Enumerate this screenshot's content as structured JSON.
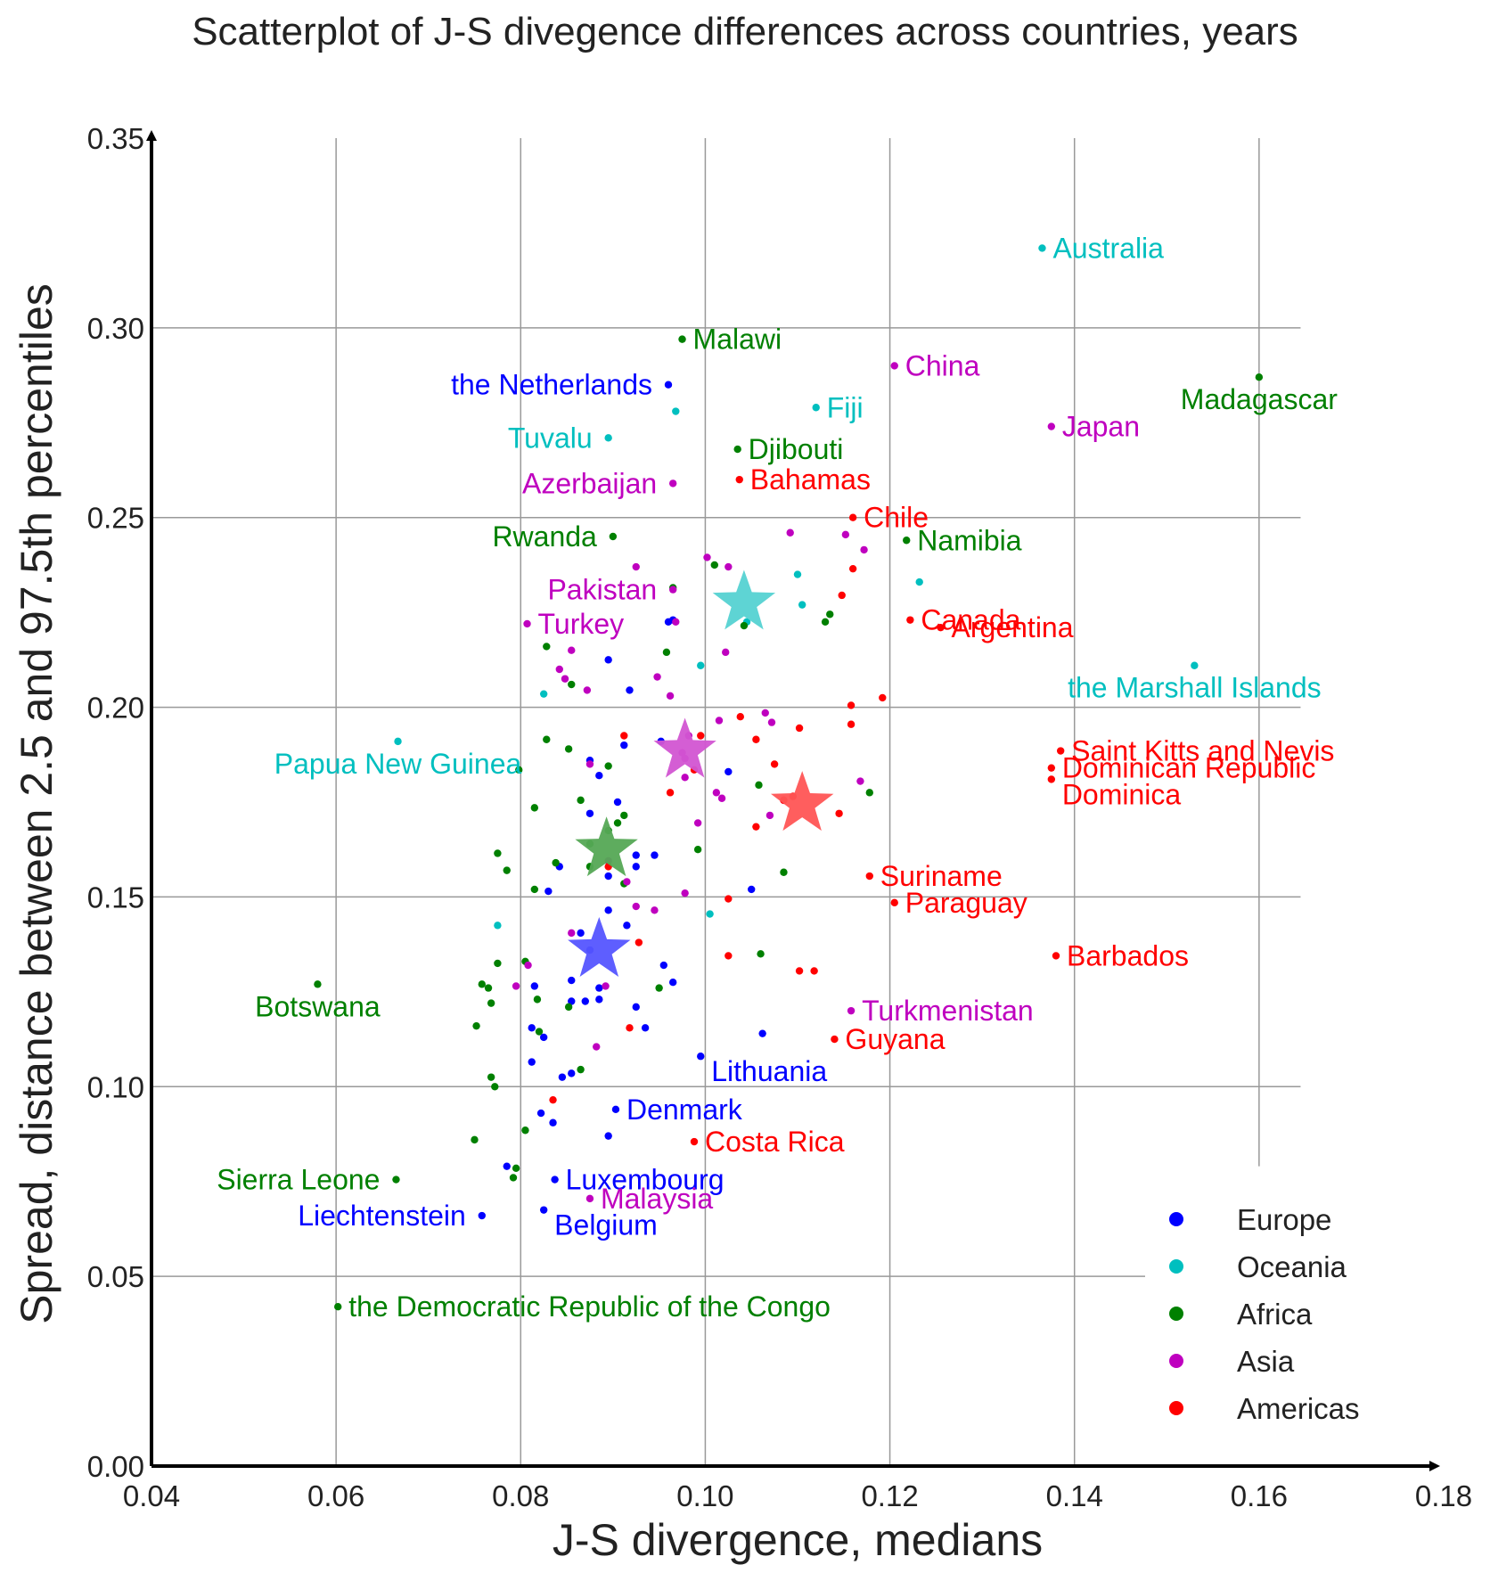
{
  "chart_data": {
    "type": "scatter",
    "title": "Scatterplot of J-S divegence differences across countries, years",
    "xlabel": "J-S divergence, medians",
    "ylabel": "Spread, distance between 2.5  and 97.5th percentiles",
    "xlim": [
      0.04,
      0.18
    ],
    "ylim": [
      0.0,
      0.35
    ],
    "xticks": [
      "0.04",
      "0.06",
      "0.08",
      "0.10",
      "0.12",
      "0.14",
      "0.16",
      "0.18"
    ],
    "yticks": [
      "0.00",
      "0.05",
      "0.10",
      "0.15",
      "0.20",
      "0.25",
      "0.30",
      "0.35"
    ],
    "grid": true,
    "legend_position": "bottom-right",
    "colors": {
      "Europe": "#0000ff",
      "Oceania": "#00bfbf",
      "Africa": "#008000",
      "Asia": "#bf00bf",
      "Americas": "#ff0000"
    },
    "star_colors": {
      "Europe": "#5555ff",
      "Oceania": "#55d2d2",
      "Africa": "#55a855",
      "Asia": "#d255d2",
      "Americas": "#ff5555"
    },
    "legend": [
      "Europe",
      "Oceania",
      "Africa",
      "Asia",
      "Americas"
    ],
    "labeled_points": [
      {
        "name": "Australia",
        "group": "Oceania",
        "x": 0.1365,
        "y": 0.321,
        "anchor": "right"
      },
      {
        "name": "Malawi",
        "group": "Africa",
        "x": 0.0975,
        "y": 0.297,
        "anchor": "right"
      },
      {
        "name": "the Netherlands",
        "group": "Europe",
        "x": 0.096,
        "y": 0.285,
        "anchor": "left"
      },
      {
        "name": "China",
        "group": "Asia",
        "x": 0.1205,
        "y": 0.29,
        "anchor": "right"
      },
      {
        "name": "Madagascar",
        "group": "Africa",
        "x": 0.16,
        "y": 0.287,
        "anchor": "below"
      },
      {
        "name": "Fiji",
        "group": "Oceania",
        "x": 0.112,
        "y": 0.279,
        "anchor": "right"
      },
      {
        "name": "Tuvalu",
        "group": "Oceania",
        "x": 0.0895,
        "y": 0.271,
        "anchor": "left"
      },
      {
        "name": "Japan",
        "group": "Asia",
        "x": 0.1375,
        "y": 0.274,
        "anchor": "right"
      },
      {
        "name": "Djibouti",
        "group": "Africa",
        "x": 0.1035,
        "y": 0.268,
        "anchor": "right"
      },
      {
        "name": "Azerbaijan",
        "group": "Asia",
        "x": 0.0965,
        "y": 0.259,
        "anchor": "left"
      },
      {
        "name": "Bahamas",
        "group": "Americas",
        "x": 0.1037,
        "y": 0.26,
        "anchor": "right"
      },
      {
        "name": "Chile",
        "group": "Americas",
        "x": 0.116,
        "y": 0.25,
        "anchor": "right"
      },
      {
        "name": "Rwanda",
        "group": "Africa",
        "x": 0.09,
        "y": 0.245,
        "anchor": "left"
      },
      {
        "name": "Namibia",
        "group": "Africa",
        "x": 0.1218,
        "y": 0.244,
        "anchor": "right"
      },
      {
        "name": "Pakistan",
        "group": "Asia",
        "x": 0.0965,
        "y": 0.231,
        "anchor": "left"
      },
      {
        "name": "Canada",
        "group": "Americas",
        "x": 0.1222,
        "y": 0.223,
        "anchor": "right"
      },
      {
        "name": "Turkey",
        "group": "Asia",
        "x": 0.0807,
        "y": 0.222,
        "anchor": "right"
      },
      {
        "name": "Argentina",
        "group": "Americas",
        "x": 0.1255,
        "y": 0.221,
        "anchor": "right"
      },
      {
        "name": "the Marshall Islands",
        "group": "Oceania",
        "x": 0.153,
        "y": 0.211,
        "anchor": "below"
      },
      {
        "name": "Papua New Guinea",
        "group": "Oceania",
        "x": 0.0667,
        "y": 0.191,
        "anchor": "below"
      },
      {
        "name": "Saint Kitts and Nevis",
        "group": "Americas",
        "x": 0.1385,
        "y": 0.1885,
        "anchor": "right"
      },
      {
        "name": "Dominican Republic",
        "group": "Americas",
        "x": 0.1375,
        "y": 0.184,
        "anchor": "right"
      },
      {
        "name": "Dominica",
        "group": "Americas",
        "x": 0.1375,
        "y": 0.181,
        "anchor": "right-below"
      },
      {
        "name": "Suriname",
        "group": "Americas",
        "x": 0.1178,
        "y": 0.1555,
        "anchor": "right"
      },
      {
        "name": "Paraguay",
        "group": "Americas",
        "x": 0.1205,
        "y": 0.1485,
        "anchor": "right"
      },
      {
        "name": "Barbados",
        "group": "Americas",
        "x": 0.138,
        "y": 0.1345,
        "anchor": "right"
      },
      {
        "name": "Botswana",
        "group": "Africa",
        "x": 0.058,
        "y": 0.127,
        "anchor": "below"
      },
      {
        "name": "Turkmenistan",
        "group": "Asia",
        "x": 0.1158,
        "y": 0.12,
        "anchor": "right"
      },
      {
        "name": "Guyana",
        "group": "Americas",
        "x": 0.114,
        "y": 0.1125,
        "anchor": "right"
      },
      {
        "name": "Lithuania",
        "group": "Europe",
        "x": 0.0995,
        "y": 0.108,
        "anchor": "right-below"
      },
      {
        "name": "Denmark",
        "group": "Europe",
        "x": 0.0903,
        "y": 0.094,
        "anchor": "right"
      },
      {
        "name": "Costa Rica",
        "group": "Americas",
        "x": 0.0988,
        "y": 0.0855,
        "anchor": "right"
      },
      {
        "name": "Sierra Leone",
        "group": "Africa",
        "x": 0.0665,
        "y": 0.0755,
        "anchor": "left"
      },
      {
        "name": "Luxembourg",
        "group": "Europe",
        "x": 0.0837,
        "y": 0.0755,
        "anchor": "right"
      },
      {
        "name": "Malaysia",
        "group": "Asia",
        "x": 0.0875,
        "y": 0.0705,
        "anchor": "right"
      },
      {
        "name": "Liechtenstein",
        "group": "Europe",
        "x": 0.0758,
        "y": 0.066,
        "anchor": "left"
      },
      {
        "name": "Belgium",
        "group": "Europe",
        "x": 0.0825,
        "y": 0.0675,
        "anchor": "right-below"
      },
      {
        "name": "the Democratic Republic of the Congo",
        "group": "Africa",
        "x": 0.0602,
        "y": 0.042,
        "anchor": "right"
      }
    ],
    "group_means": [
      {
        "group": "Oceania",
        "x": 0.1042,
        "y": 0.2275
      },
      {
        "group": "Asia",
        "x": 0.0978,
        "y": 0.1885
      },
      {
        "group": "Americas",
        "x": 0.1105,
        "y": 0.1745
      },
      {
        "group": "Africa",
        "x": 0.0893,
        "y": 0.1625
      },
      {
        "group": "Europe",
        "x": 0.0885,
        "y": 0.136
      }
    ],
    "points": {
      "Europe": [
        [
          0.0895,
          0.2125
        ],
        [
          0.0918,
          0.2045
        ],
        [
          0.0952,
          0.191
        ],
        [
          0.096,
          0.2225
        ],
        [
          0.0875,
          0.186
        ],
        [
          0.0885,
          0.182
        ],
        [
          0.0912,
          0.19
        ],
        [
          0.0875,
          0.172
        ],
        [
          0.0925,
          0.161
        ],
        [
          0.0925,
          0.158
        ],
        [
          0.0895,
          0.1555
        ],
        [
          0.0945,
          0.161
        ],
        [
          0.0842,
          0.158
        ],
        [
          0.083,
          0.1515
        ],
        [
          0.0895,
          0.1465
        ],
        [
          0.0915,
          0.1425
        ],
        [
          0.0865,
          0.1405
        ],
        [
          0.0875,
          0.136
        ],
        [
          0.0955,
          0.132
        ],
        [
          0.0965,
          0.1275
        ],
        [
          0.0855,
          0.128
        ],
        [
          0.0885,
          0.126
        ],
        [
          0.0815,
          0.1265
        ],
        [
          0.087,
          0.1225
        ],
        [
          0.0885,
          0.123
        ],
        [
          0.0855,
          0.1225
        ],
        [
          0.0925,
          0.121
        ],
        [
          0.0935,
          0.1155
        ],
        [
          0.0812,
          0.1155
        ],
        [
          0.0825,
          0.113
        ],
        [
          0.1062,
          0.114
        ],
        [
          0.0812,
          0.1065
        ],
        [
          0.0845,
          0.1025
        ],
        [
          0.0855,
          0.1035
        ],
        [
          0.0822,
          0.093
        ],
        [
          0.0835,
          0.0905
        ],
        [
          0.0895,
          0.087
        ],
        [
          0.0785,
          0.079
        ],
        [
          0.105,
          0.152
        ],
        [
          0.1025,
          0.183
        ],
        [
          0.0905,
          0.175
        ],
        [
          0.0965,
          0.223
        ]
      ],
      "Oceania": [
        [
          0.0968,
          0.278
        ],
        [
          0.11,
          0.235
        ],
        [
          0.1232,
          0.233
        ],
        [
          0.1105,
          0.227
        ],
        [
          0.1045,
          0.2225
        ],
        [
          0.0995,
          0.211
        ],
        [
          0.0825,
          0.2035
        ],
        [
          0.1005,
          0.1455
        ],
        [
          0.0775,
          0.1425
        ]
      ],
      "Africa": [
        [
          0.101,
          0.2375
        ],
        [
          0.0965,
          0.2315
        ],
        [
          0.1135,
          0.2245
        ],
        [
          0.113,
          0.2225
        ],
        [
          0.1042,
          0.2215
        ],
        [
          0.0958,
          0.2145
        ],
        [
          0.0828,
          0.216
        ],
        [
          0.0855,
          0.206
        ],
        [
          0.0828,
          0.1915
        ],
        [
          0.0852,
          0.189
        ],
        [
          0.0895,
          0.1845
        ],
        [
          0.0798,
          0.1835
        ],
        [
          0.1058,
          0.1795
        ],
        [
          0.1178,
          0.1775
        ],
        [
          0.0865,
          0.1755
        ],
        [
          0.0815,
          0.1735
        ],
        [
          0.0912,
          0.1715
        ],
        [
          0.0905,
          0.1695
        ],
        [
          0.0775,
          0.1615
        ],
        [
          0.0992,
          0.1625
        ],
        [
          0.0785,
          0.157
        ],
        [
          0.0838,
          0.159
        ],
        [
          0.0875,
          0.158
        ],
        [
          0.1085,
          0.1565
        ],
        [
          0.0912,
          0.1535
        ],
        [
          0.0815,
          0.152
        ],
        [
          0.106,
          0.135
        ],
        [
          0.0775,
          0.1325
        ],
        [
          0.0805,
          0.133
        ],
        [
          0.0758,
          0.127
        ],
        [
          0.0765,
          0.126
        ],
        [
          0.095,
          0.126
        ],
        [
          0.0818,
          0.123
        ],
        [
          0.0768,
          0.122
        ],
        [
          0.0852,
          0.121
        ],
        [
          0.0752,
          0.116
        ],
        [
          0.082,
          0.1145
        ],
        [
          0.0865,
          0.1045
        ],
        [
          0.0768,
          0.1025
        ],
        [
          0.0772,
          0.1
        ],
        [
          0.0805,
          0.0885
        ],
        [
          0.075,
          0.086
        ],
        [
          0.0795,
          0.0785
        ],
        [
          0.0792,
          0.076
        ],
        [
          0.0875,
          0.164
        ],
        [
          0.0895,
          0.1675
        ]
      ],
      "Asia": [
        [
          0.1002,
          0.2395
        ],
        [
          0.1092,
          0.246
        ],
        [
          0.1152,
          0.2455
        ],
        [
          0.1172,
          0.2415
        ],
        [
          0.0925,
          0.237
        ],
        [
          0.1025,
          0.237
        ],
        [
          0.0968,
          0.2225
        ],
        [
          0.0855,
          0.215
        ],
        [
          0.1022,
          0.2145
        ],
        [
          0.0842,
          0.21
        ],
        [
          0.0848,
          0.2075
        ],
        [
          0.0948,
          0.208
        ],
        [
          0.0962,
          0.203
        ],
        [
          0.0872,
          0.2045
        ],
        [
          0.1065,
          0.1985
        ],
        [
          0.1072,
          0.196
        ],
        [
          0.1015,
          0.1965
        ],
        [
          0.0982,
          0.1925
        ],
        [
          0.0975,
          0.188
        ],
        [
          0.0978,
          0.1865
        ],
        [
          0.0875,
          0.185
        ],
        [
          0.0978,
          0.1815
        ],
        [
          0.1168,
          0.1805
        ],
        [
          0.1012,
          0.1775
        ],
        [
          0.1018,
          0.176
        ],
        [
          0.1085,
          0.1755
        ],
        [
          0.107,
          0.1715
        ],
        [
          0.0992,
          0.1695
        ],
        [
          0.0895,
          0.1595
        ],
        [
          0.0915,
          0.154
        ],
        [
          0.0978,
          0.151
        ],
        [
          0.0945,
          0.1465
        ],
        [
          0.0925,
          0.1475
        ],
        [
          0.0855,
          0.1405
        ],
        [
          0.0808,
          0.132
        ],
        [
          0.0795,
          0.1265
        ],
        [
          0.0892,
          0.1265
        ],
        [
          0.0882,
          0.1105
        ]
      ],
      "Americas": [
        [
          0.116,
          0.2365
        ],
        [
          0.1148,
          0.2295
        ],
        [
          0.1158,
          0.2005
        ],
        [
          0.1192,
          0.2025
        ],
        [
          0.1158,
          0.1955
        ],
        [
          0.1038,
          0.1975
        ],
        [
          0.1102,
          0.1945
        ],
        [
          0.0912,
          0.1925
        ],
        [
          0.0995,
          0.1925
        ],
        [
          0.1055,
          0.1915
        ],
        [
          0.1075,
          0.185
        ],
        [
          0.0988,
          0.1835
        ],
        [
          0.0962,
          0.1775
        ],
        [
          0.1095,
          0.1765
        ],
        [
          0.1085,
          0.1755
        ],
        [
          0.1145,
          0.172
        ],
        [
          0.1055,
          0.1685
        ],
        [
          0.0895,
          0.158
        ],
        [
          0.1025,
          0.1495
        ],
        [
          0.1025,
          0.1345
        ],
        [
          0.1102,
          0.1305
        ],
        [
          0.1118,
          0.1305
        ],
        [
          0.0928,
          0.138
        ],
        [
          0.0918,
          0.1155
        ],
        [
          0.0835,
          0.0965
        ]
      ]
    }
  }
}
